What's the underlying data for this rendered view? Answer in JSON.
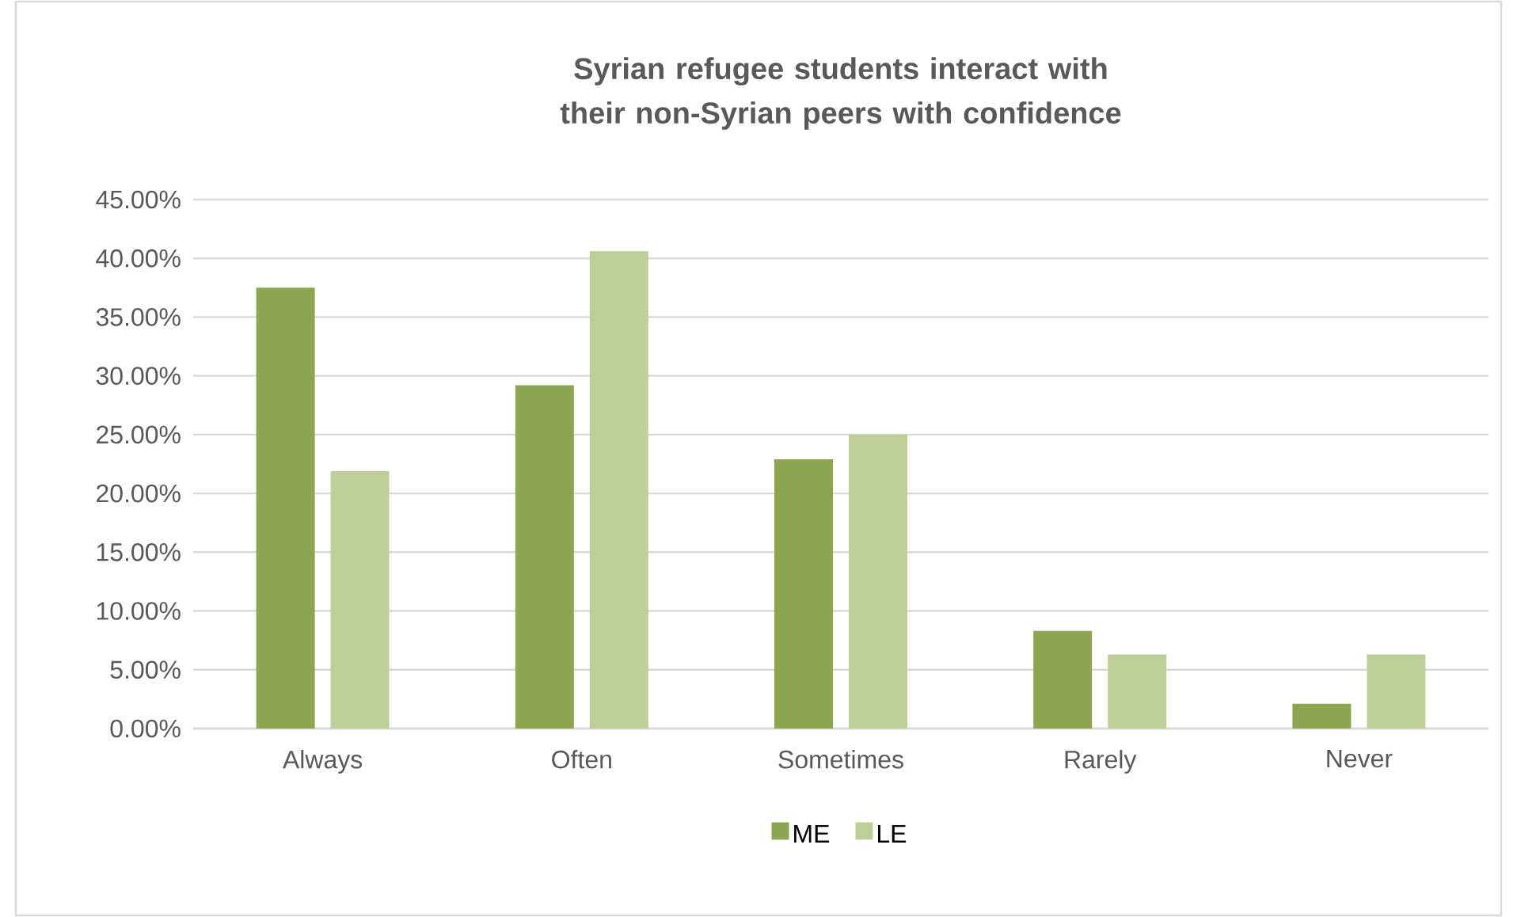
{
  "chart_data": {
    "type": "bar",
    "title": "Syrian refugee students interact with their non-Syrian peers with confidence",
    "categories": [
      "Always",
      "Often",
      "Sometimes",
      "Rarely",
      "Never"
    ],
    "series": [
      {
        "name": "ME",
        "color": "#8ba64f",
        "values": [
          37.5,
          29.2,
          22.9,
          8.3,
          2.1
        ]
      },
      {
        "name": "LE",
        "color": "#bbcf96",
        "values": [
          21.9,
          40.6,
          25,
          6.3,
          6.3
        ]
      }
    ],
    "ylim": [
      0,
      45
    ],
    "yticks": [
      {
        "value": 0,
        "label": "0.00%"
      },
      {
        "value": 5,
        "label": "5.00%"
      },
      {
        "value": 10,
        "label": "10.00%"
      },
      {
        "value": 15,
        "label": "15.00%"
      },
      {
        "value": 20,
        "label": "20.00%"
      },
      {
        "value": 25,
        "label": "25.00%"
      },
      {
        "value": 30,
        "label": "30.00%"
      },
      {
        "value": 35,
        "label": "35.00%"
      },
      {
        "value": 40,
        "label": "40.00%"
      },
      {
        "value": 45,
        "label": "45.00%"
      }
    ],
    "grid": "y",
    "legend": "bottom"
  }
}
